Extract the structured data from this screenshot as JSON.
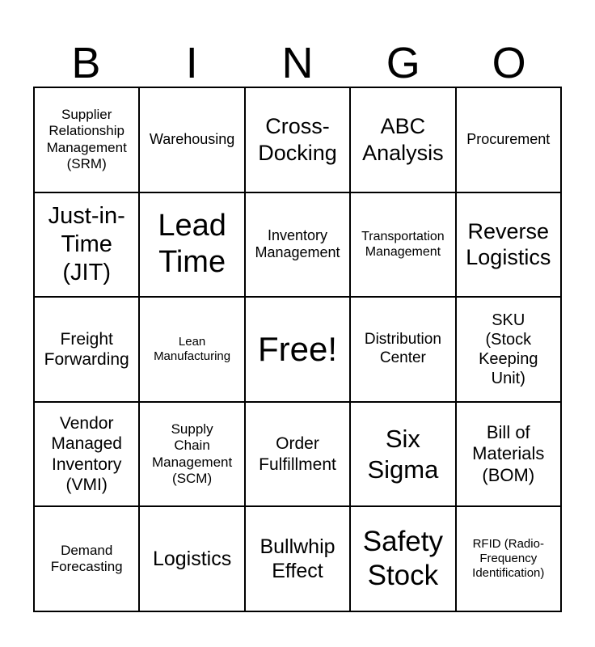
{
  "card": {
    "title_letters": [
      "B",
      "I",
      "N",
      "G",
      "O"
    ],
    "colors": {
      "background": "#ffffff",
      "grid_lines": "#000000",
      "text": "#000000"
    },
    "grid": {
      "columns": 5,
      "rows": 5,
      "free_space_label": "Free!",
      "cells": [
        {
          "label": "Supplier\nRelationship\nManagement\n(SRM)"
        },
        {
          "label": "Warehousing"
        },
        {
          "label": "Cross-\nDocking"
        },
        {
          "label": "ABC\nAnalysis"
        },
        {
          "label": "Procurement"
        },
        {
          "label": "Just-in-\nTime\n(JIT)"
        },
        {
          "label": "Lead\nTime"
        },
        {
          "label": "Inventory\nManagement"
        },
        {
          "label": "Transportation\nManagement"
        },
        {
          "label": "Reverse\nLogistics"
        },
        {
          "label": "Freight\nForwarding"
        },
        {
          "label": "Lean\nManufacturing"
        },
        {
          "label": "Free!"
        },
        {
          "label": "Distribution\nCenter"
        },
        {
          "label": "SKU\n(Stock\nKeeping\nUnit)"
        },
        {
          "label": "Vendor\nManaged\nInventory\n(VMI)"
        },
        {
          "label": "Supply\nChain\nManagement\n(SCM)"
        },
        {
          "label": "Order\nFulfillment"
        },
        {
          "label": "Six\nSigma"
        },
        {
          "label": "Bill of\nMaterials\n(BOM)"
        },
        {
          "label": "Demand\nForecasting"
        },
        {
          "label": "Logistics"
        },
        {
          "label": "Bullwhip\nEffect"
        },
        {
          "label": "Safety\nStock"
        },
        {
          "label": "RFID (Radio-\nFrequency\nIdentification)"
        }
      ]
    }
  }
}
